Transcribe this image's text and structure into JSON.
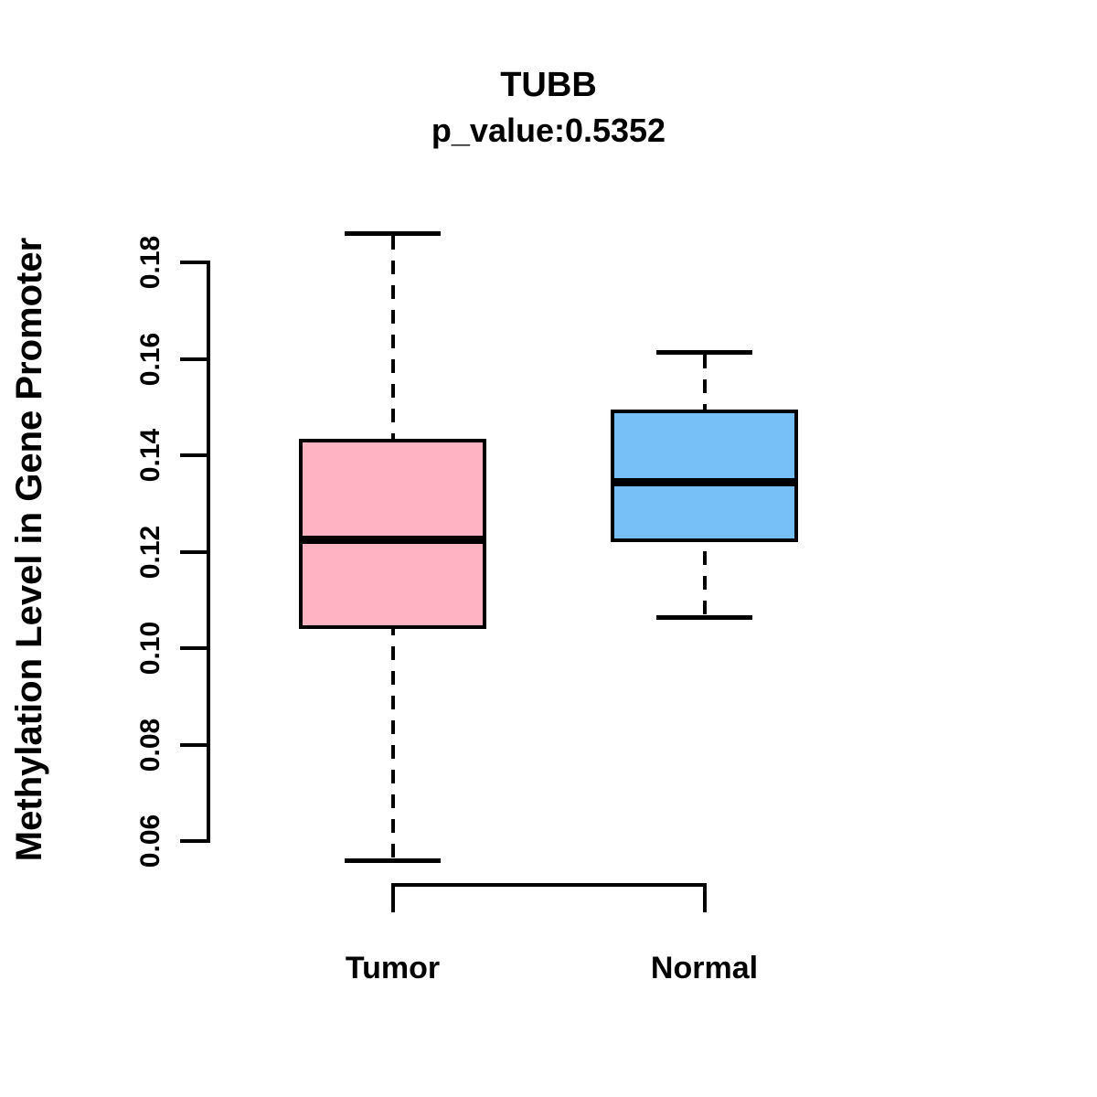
{
  "chart_data": {
    "type": "boxplot",
    "title": "TUBB",
    "subtitle": "p_value:0.5352",
    "ylabel": "Methylation Level in Gene Promoter",
    "xlabel": "",
    "ylim": [
      0.06,
      0.18
    ],
    "ytick_values": [
      0.06,
      0.08,
      0.1,
      0.12,
      0.14,
      0.16,
      0.18
    ],
    "ytick_labels": [
      "0.06",
      "0.08",
      "0.10",
      "0.12",
      "0.14",
      "0.16",
      "0.18"
    ],
    "grid": false,
    "legend": "none",
    "colors": {
      "tumor_fill": "#FFB3C3",
      "normal_fill": "#77BFF7",
      "stroke": "#000000",
      "background": "#FFFFFF"
    },
    "groups": [
      {
        "label": "Tumor",
        "fill": "#FFB3C3",
        "stats": {
          "lower_whisker": 0.056,
          "q1": 0.104,
          "median": 0.1225,
          "q3": 0.1435,
          "upper_whisker": 0.186
        }
      },
      {
        "label": "Normal",
        "fill": "#77BFF7",
        "stats": {
          "lower_whisker": 0.1065,
          "q1": 0.122,
          "median": 0.1345,
          "q3": 0.1495,
          "upper_whisker": 0.1615
        }
      }
    ]
  }
}
